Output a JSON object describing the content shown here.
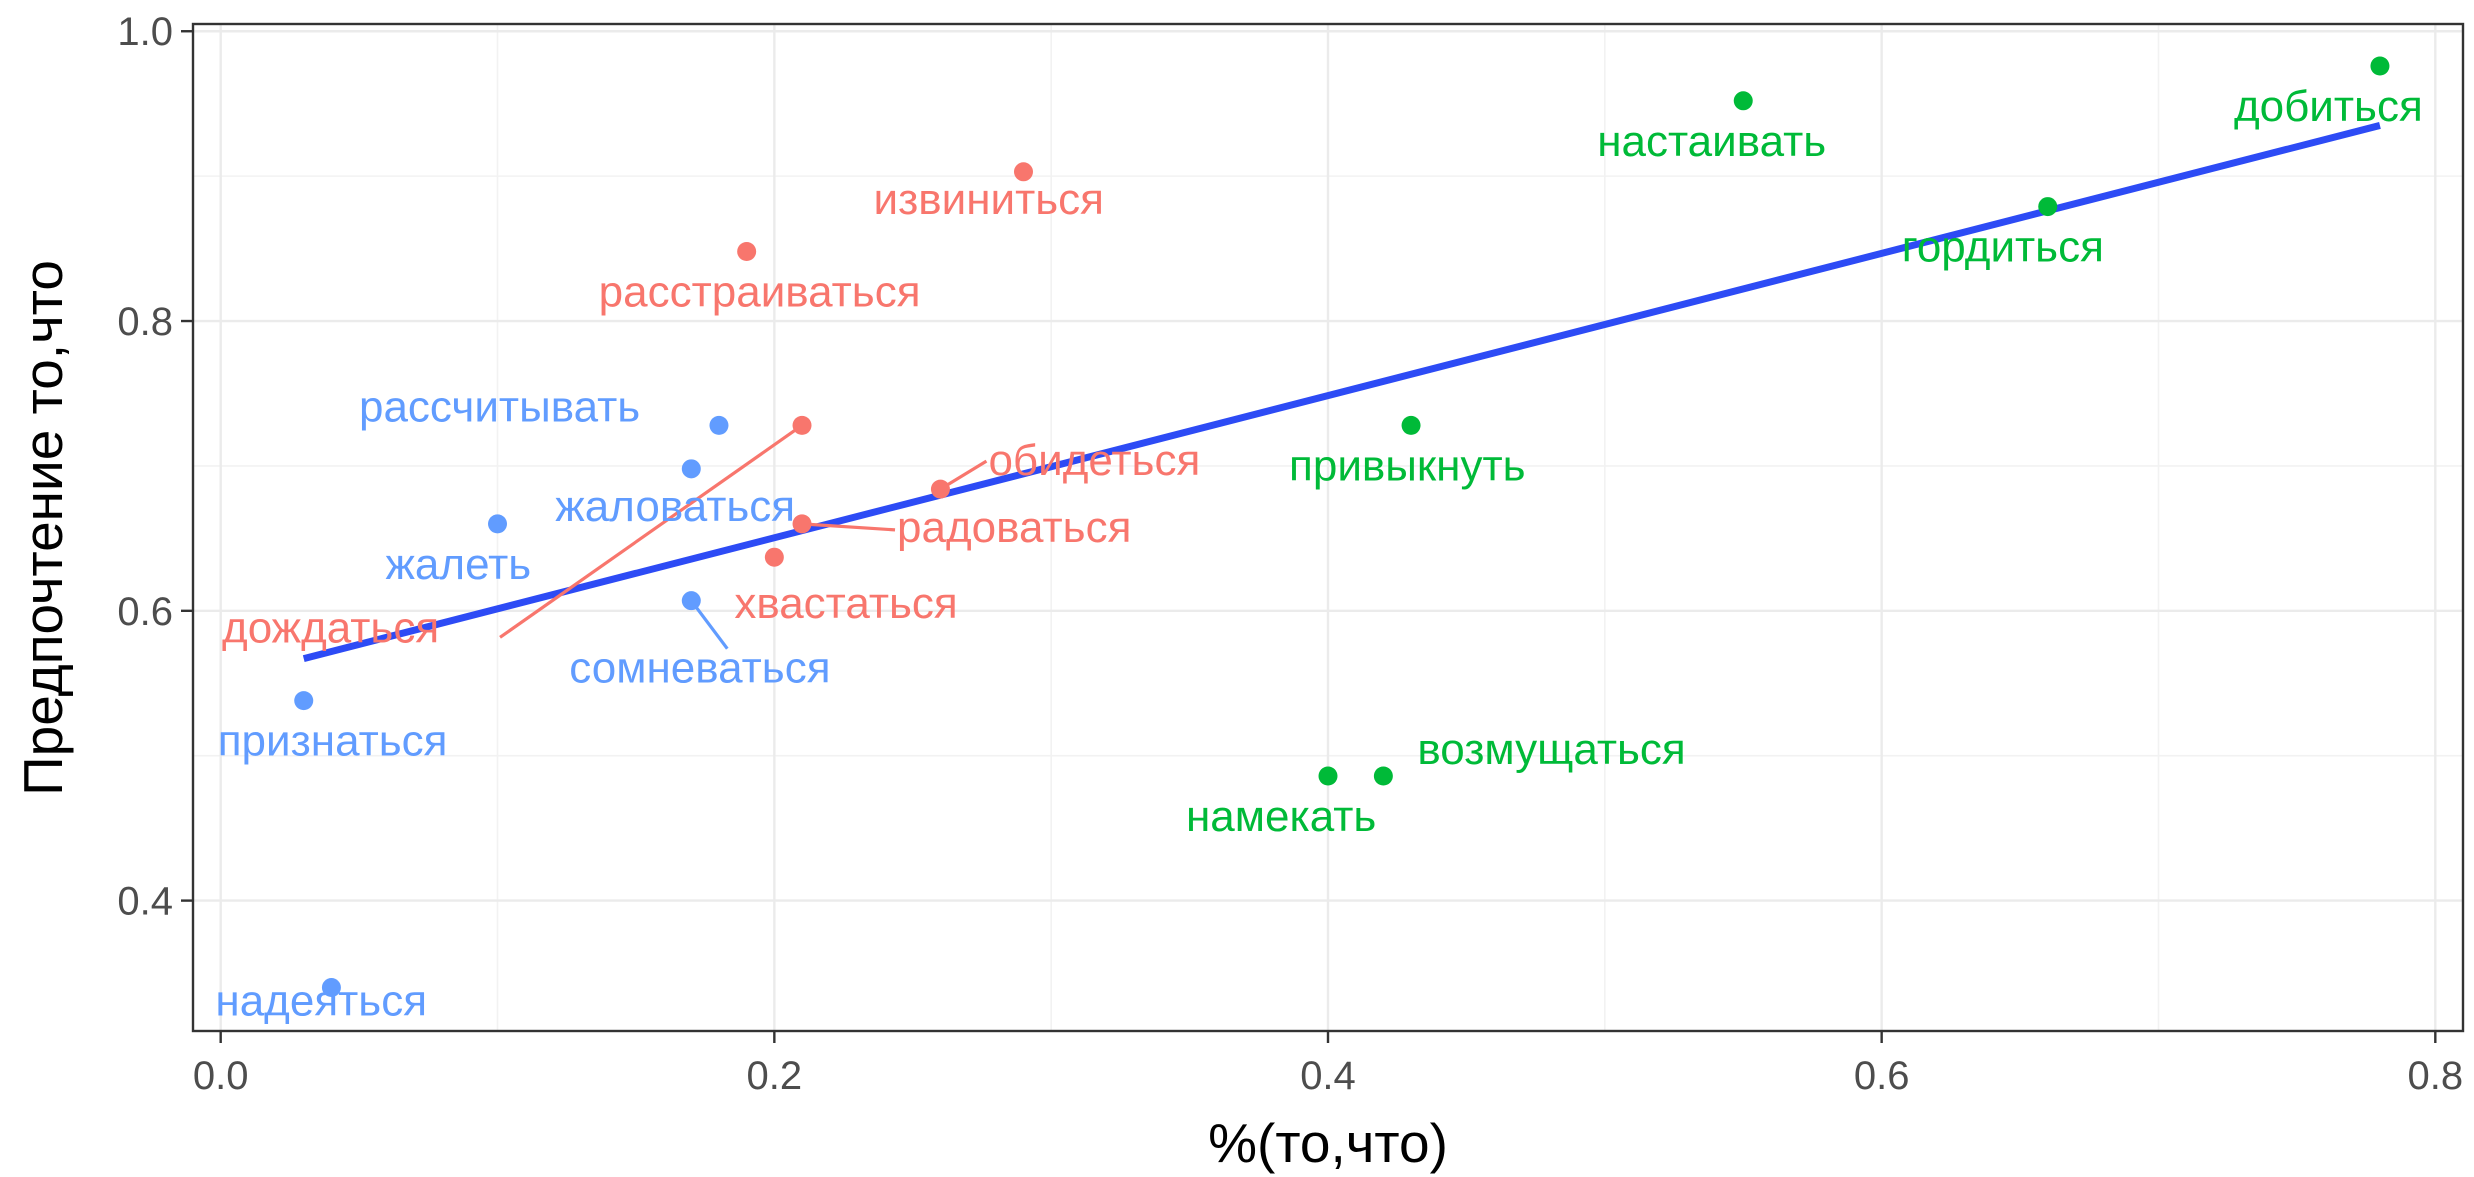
{
  "chart_data": {
    "type": "scatter",
    "title": "",
    "xlabel": "%(то,что)",
    "ylabel": "Предпочтение то,что",
    "xlim": [
      -0.01,
      0.81
    ],
    "ylim": [
      0.31,
      1.005
    ],
    "xticks": [
      0.0,
      0.2,
      0.4,
      0.6,
      0.8
    ],
    "xtick_labels": [
      "0.0",
      "0.2",
      "0.4",
      "0.6",
      "0.8"
    ],
    "yticks": [
      0.4,
      0.6,
      0.8,
      1.0
    ],
    "ytick_labels": [
      "0.4",
      "0.6",
      "0.8",
      "1.0"
    ],
    "grid": true,
    "legend": "none",
    "groups": [
      {
        "color": "#F8766D",
        "points": [
          {
            "label": "извиниться",
            "x": 0.29,
            "y": 0.903
          },
          {
            "label": "расстраиваться",
            "x": 0.19,
            "y": 0.848
          },
          {
            "label": "дождаться",
            "x": 0.21,
            "y": 0.728
          },
          {
            "label": "обидеться",
            "x": 0.26,
            "y": 0.684
          },
          {
            "label": "радоваться",
            "x": 0.21,
            "y": 0.66
          },
          {
            "label": "хвастаться",
            "x": 0.2,
            "y": 0.637
          }
        ]
      },
      {
        "color": "#00BA38",
        "points": [
          {
            "label": "добиться",
            "x": 0.78,
            "y": 0.976
          },
          {
            "label": "настаивать",
            "x": 0.55,
            "y": 0.952
          },
          {
            "label": "гордиться",
            "x": 0.66,
            "y": 0.879
          },
          {
            "label": "привыкнуть",
            "x": 0.43,
            "y": 0.728
          },
          {
            "label": "возмущаться",
            "x": 0.42,
            "y": 0.486
          },
          {
            "label": "намекать",
            "x": 0.4,
            "y": 0.486
          }
        ]
      },
      {
        "color": "#619CFF",
        "points": [
          {
            "label": "рассчитывать",
            "x": 0.18,
            "y": 0.728
          },
          {
            "label": "жаловаться",
            "x": 0.17,
            "y": 0.698
          },
          {
            "label": "жалеть",
            "x": 0.1,
            "y": 0.66
          },
          {
            "label": "сомневаться",
            "x": 0.17,
            "y": 0.607
          },
          {
            "label": "признаться",
            "x": 0.03,
            "y": 0.538
          },
          {
            "label": "надеяться",
            "x": 0.04,
            "y": 0.34
          }
        ]
      }
    ],
    "trend_line": {
      "color": "#2D4BF5",
      "x": [
        0.03,
        0.78
      ],
      "y": [
        0.567,
        0.935
      ]
    }
  }
}
